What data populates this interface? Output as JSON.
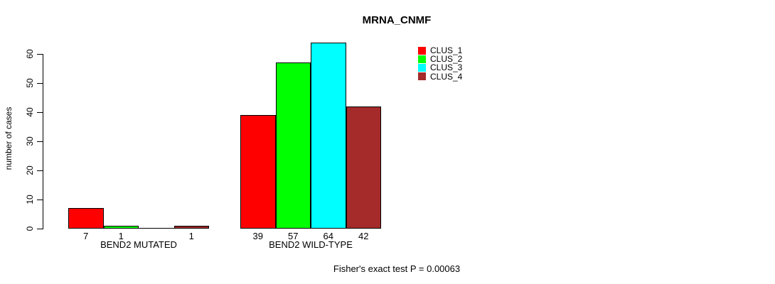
{
  "chart_data": {
    "type": "bar",
    "title": "MRNA_CNMF",
    "ylabel": "number of cases",
    "xlabel": "",
    "ylim": [
      0,
      60
    ],
    "yticks": [
      0,
      10,
      20,
      30,
      40,
      50,
      60
    ],
    "categories": [
      "BEND2 MUTATED",
      "BEND2 WILD-TYPE"
    ],
    "series": [
      {
        "name": "CLUS_1",
        "color": "#ff0000",
        "values": [
          7,
          39
        ]
      },
      {
        "name": "CLUS_2",
        "color": "#00ff00",
        "values": [
          1,
          57
        ]
      },
      {
        "name": "CLUS_3",
        "color": "#00ffff",
        "values": [
          0,
          64
        ]
      },
      {
        "name": "CLUS_4",
        "color": "#a52a2a",
        "values": [
          1,
          42
        ]
      }
    ],
    "bar_value_labels": [
      [
        "7",
        "1",
        "",
        "1"
      ],
      [
        "39",
        "57",
        "64",
        "42"
      ]
    ],
    "legend": {
      "position": "top-right",
      "entries": [
        "CLUS_1",
        "CLUS_2",
        "CLUS_3",
        "CLUS_4"
      ]
    },
    "annotation": "Fisher's exact test P = 0.00063",
    "grid": false,
    "bar_border_color": "#000000",
    "background_color": "#ffffff"
  }
}
